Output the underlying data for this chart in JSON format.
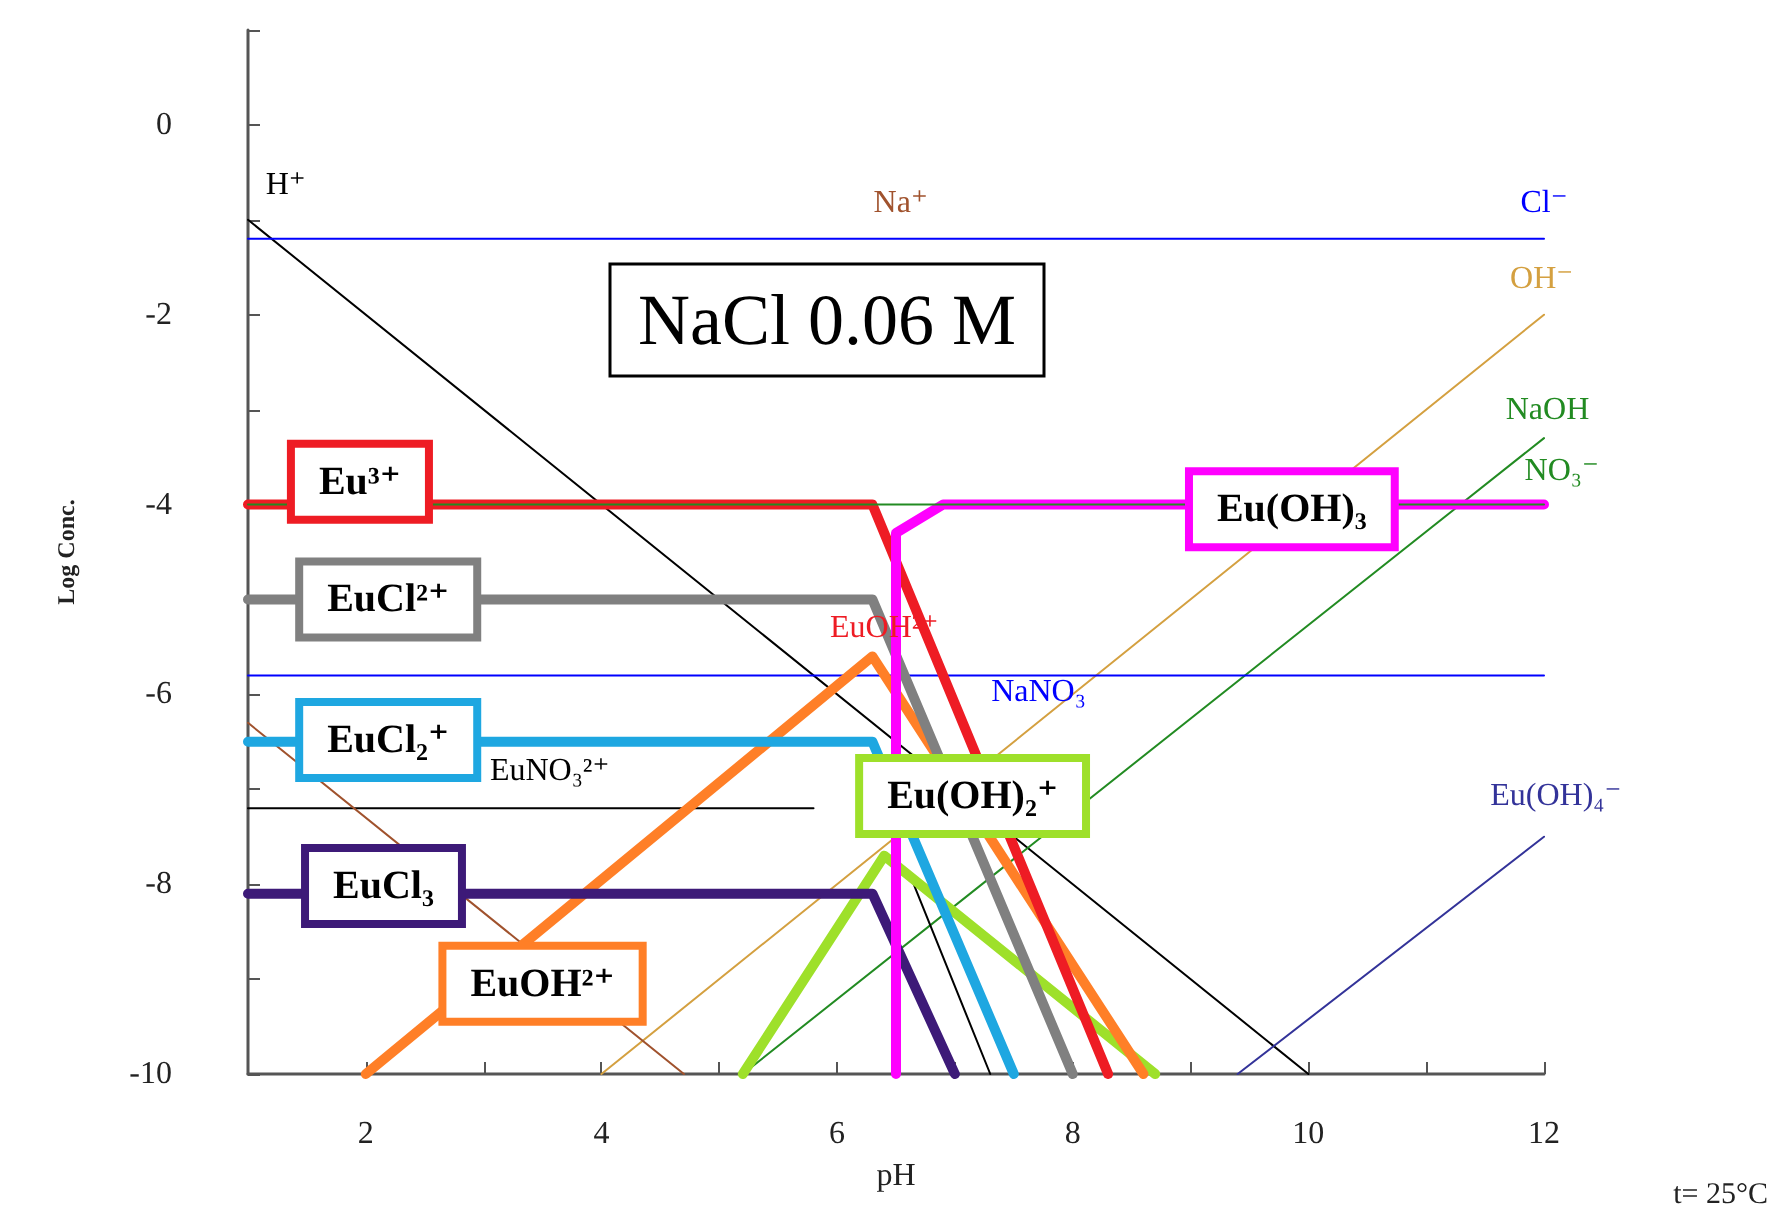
{
  "chart_data": {
    "type": "line",
    "title": "NaCl 0.06 M",
    "xlabel": "pH",
    "ylabel": "Log Conc.",
    "marker": "none",
    "grid": false,
    "legend": false,
    "xlim": [
      1,
      12
    ],
    "ylim": [
      -10,
      1
    ],
    "xticks": [
      2,
      {
        "value": 3,
        "label": null
      },
      4,
      {
        "value": 5,
        "label": null
      },
      6,
      {
        "value": 7,
        "label": null
      },
      8,
      {
        "value": 9,
        "label": null
      },
      10,
      {
        "value": 11,
        "label": null
      },
      12
    ],
    "yticks": [
      -10,
      {
        "value": -9,
        "label": null
      },
      -8,
      {
        "value": -7,
        "label": null
      },
      -6,
      {
        "value": -5,
        "label": null
      },
      -4,
      {
        "value": -3,
        "label": null
      },
      -2,
      {
        "value": -1,
        "label": null
      },
      0,
      {
        "value": 1,
        "label": null
      }
    ],
    "annotations": [
      {
        "text": "EuOH²⁺",
        "x": 6.4,
        "y": -5.3
      },
      {
        "text": "Na⁺",
        "x": 6.54,
        "y": -1.2
      },
      "t= 25°C"
    ],
    "series": [
      {
        "name": "H⁺",
        "color": "#000000",
        "x": [
          1,
          10
        ],
        "values": [
          -1,
          -10
        ]
      },
      {
        "name": "Cl⁻",
        "color": "#0000ff",
        "x": [
          1,
          12
        ],
        "values": [
          -1.2,
          -1.2
        ]
      },
      {
        "name": "OH⁻",
        "color": "#d4a040",
        "x": [
          4,
          12
        ],
        "values": [
          -10,
          -2
        ]
      },
      {
        "name": "NaOH",
        "color": "#228b22",
        "x": [
          5.2,
          12
        ],
        "values": [
          -10,
          -3.3
        ]
      },
      {
        "name": "NO₃⁻",
        "color": "#228b22",
        "x": [
          1,
          12
        ],
        "values": [
          -4,
          -4
        ]
      },
      {
        "name": "NaNO₃",
        "color": "#0000ff",
        "x": [
          1,
          12
        ],
        "values": [
          -5.8,
          -5.8
        ]
      },
      {
        "name": "EuNO₃²⁺",
        "color": "#000000",
        "x": [
          1,
          5.8,
          6.2,
          6.65,
          7.3
        ],
        "values": [
          -7.2,
          -7.2,
          null,
          -8,
          -10
        ]
      },
      {
        "name": "Eu(OH)₄⁻",
        "color": "#333399",
        "x": [
          9.4,
          12
        ],
        "values": [
          -10,
          -7.5
        ]
      },
      {
        "color": "#a0522d",
        "x": [
          1,
          4.7
        ],
        "values": [
          -6.3,
          -10
        ]
      },
      {
        "name": "Eu(OH)₂⁺",
        "color": "#9ee02a",
        "x": [
          5.2,
          6.4,
          8.7
        ],
        "values": [
          -10,
          -7.7,
          -10
        ]
      },
      {
        "name": "EuOH²⁺",
        "color": "#ff7f27",
        "x": [
          2,
          6.3,
          8.6
        ],
        "values": [
          -10,
          -5.6,
          -10
        ]
      },
      {
        "name": "EuCl₃",
        "color": "#3d1a78",
        "x": [
          1,
          6.3,
          7
        ],
        "values": [
          -8.1,
          -8.1,
          -10
        ]
      },
      {
        "name": "EuCl₂⁺",
        "color": "#1ea7e1",
        "x": [
          1,
          6.3,
          7.5
        ],
        "values": [
          -6.5,
          -6.5,
          -10
        ]
      },
      {
        "name": "EuCl²⁺",
        "color": "#808080",
        "x": [
          1,
          6.3,
          8
        ],
        "values": [
          -5,
          -5,
          -10
        ]
      },
      {
        "name": "Eu³⁺",
        "color": "#ee1c24",
        "x": [
          1,
          6.3,
          8.3
        ],
        "values": [
          -4,
          -4,
          -10
        ]
      },
      {
        "name": "Eu(OH)₃",
        "color": "#ff00ff",
        "x": [
          6.5,
          6.5,
          6.9,
          12
        ],
        "values": [
          -10,
          -4.3,
          -4,
          -4
        ]
      }
    ]
  }
}
